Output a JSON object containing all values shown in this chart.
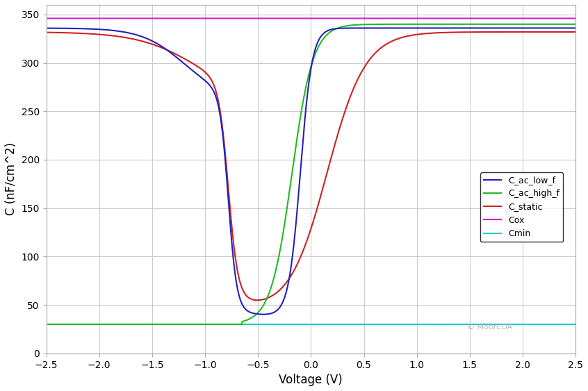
{
  "title": "",
  "xlabel": "Voltage (V)",
  "ylabel": "C (nF/cm^2)",
  "xlim": [
    -2.5,
    2.5
  ],
  "ylim": [
    0,
    360
  ],
  "yticks": [
    0,
    50,
    100,
    150,
    200,
    250,
    300,
    350
  ],
  "xticks": [
    -2.5,
    -2.0,
    -1.5,
    -1.0,
    -0.5,
    0.0,
    0.5,
    1.0,
    1.5,
    2.0,
    2.5
  ],
  "Cox_value": 346,
  "Cmin_value": 30,
  "colors": {
    "C_ac_low_f": "#2222bb",
    "C_ac_high_f": "#22bb22",
    "C_static": "#cc2222",
    "Cox": "#cc22cc",
    "Cmin": "#22cccc"
  },
  "legend_labels": [
    "C_ac_low_f",
    "C_ac_high_f",
    "C_static",
    "Cox",
    "Cmin"
  ],
  "background_color": "#ffffff",
  "grid_color": "#cccccc"
}
